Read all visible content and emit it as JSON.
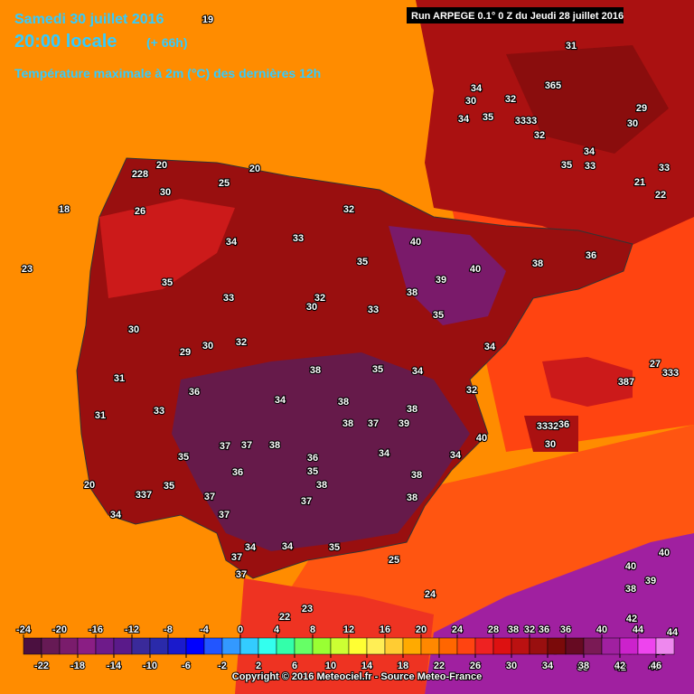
{
  "header": {
    "date": "Samedi 30 juillet 2016",
    "time": "20:00 locale",
    "offset": "(+ 66h)",
    "subtitle": "Température maximale à 2m (°C) des dernières 12h",
    "run": "Run ARPEGE 0.1° 0 Z du Jeudi 28 juillet 2016"
  },
  "footer": "Copyright © 2016 Meteociel.fr - Source Meteo-France",
  "colorbar": {
    "ticks": [
      -24,
      -22,
      -20,
      -18,
      -16,
      -14,
      -12,
      -10,
      -8,
      -6,
      -4,
      -2,
      0,
      2,
      4,
      6,
      8,
      10,
      12,
      14,
      16,
      18,
      20,
      22,
      24,
      26,
      28,
      30,
      32,
      34,
      36,
      38,
      40,
      42,
      44,
      46
    ],
    "colors": [
      "#4b1040",
      "#661a55",
      "#7a1c6c",
      "#8a1e84",
      "#6e1b8a",
      "#5a1a8a",
      "#3a2a9a",
      "#2a2aaa",
      "#1a1acc",
      "#0000ff",
      "#2255ff",
      "#3399ff",
      "#33ccff",
      "#33ffee",
      "#33ffaa",
      "#66ff66",
      "#99ff33",
      "#ccff33",
      "#ffff33",
      "#ffee55",
      "#ffcc33",
      "#ffaa00",
      "#ff8800",
      "#ff6600",
      "#ff4411",
      "#ee2222",
      "#dd1111",
      "#bb1111",
      "#990f0f",
      "#7a0a0a",
      "#660a22",
      "#7a1a55",
      "#a020a0",
      "#cc22cc",
      "#ee44ee",
      "#ee88ee"
    ]
  },
  "map_labels": [
    19,
    31,
    34,
    30,
    32,
    365,
    35,
    34,
    3333,
    32,
    29,
    30,
    34,
    35,
    33,
    33,
    21,
    22,
    228,
    20,
    20,
    25,
    30,
    18,
    26,
    34,
    33,
    32,
    35,
    40,
    40,
    39,
    38,
    36,
    35,
    23,
    33,
    32,
    30,
    33,
    38,
    35,
    34,
    30,
    29,
    30,
    32,
    31,
    36,
    38,
    38,
    35,
    34,
    34,
    32,
    31,
    33,
    38,
    37,
    39,
    40,
    38,
    37,
    37,
    38,
    35,
    36,
    36,
    34,
    34,
    20,
    35,
    337,
    37,
    35,
    38,
    34,
    37,
    37,
    38,
    38,
    34,
    34,
    35,
    37,
    37,
    25,
    24,
    23,
    22,
    40,
    39,
    38,
    42,
    44,
    43,
    40,
    36,
    38,
    34,
    38,
    42,
    39,
    46,
    40,
    387,
    333,
    27,
    30,
    3332,
    36
  ]
}
